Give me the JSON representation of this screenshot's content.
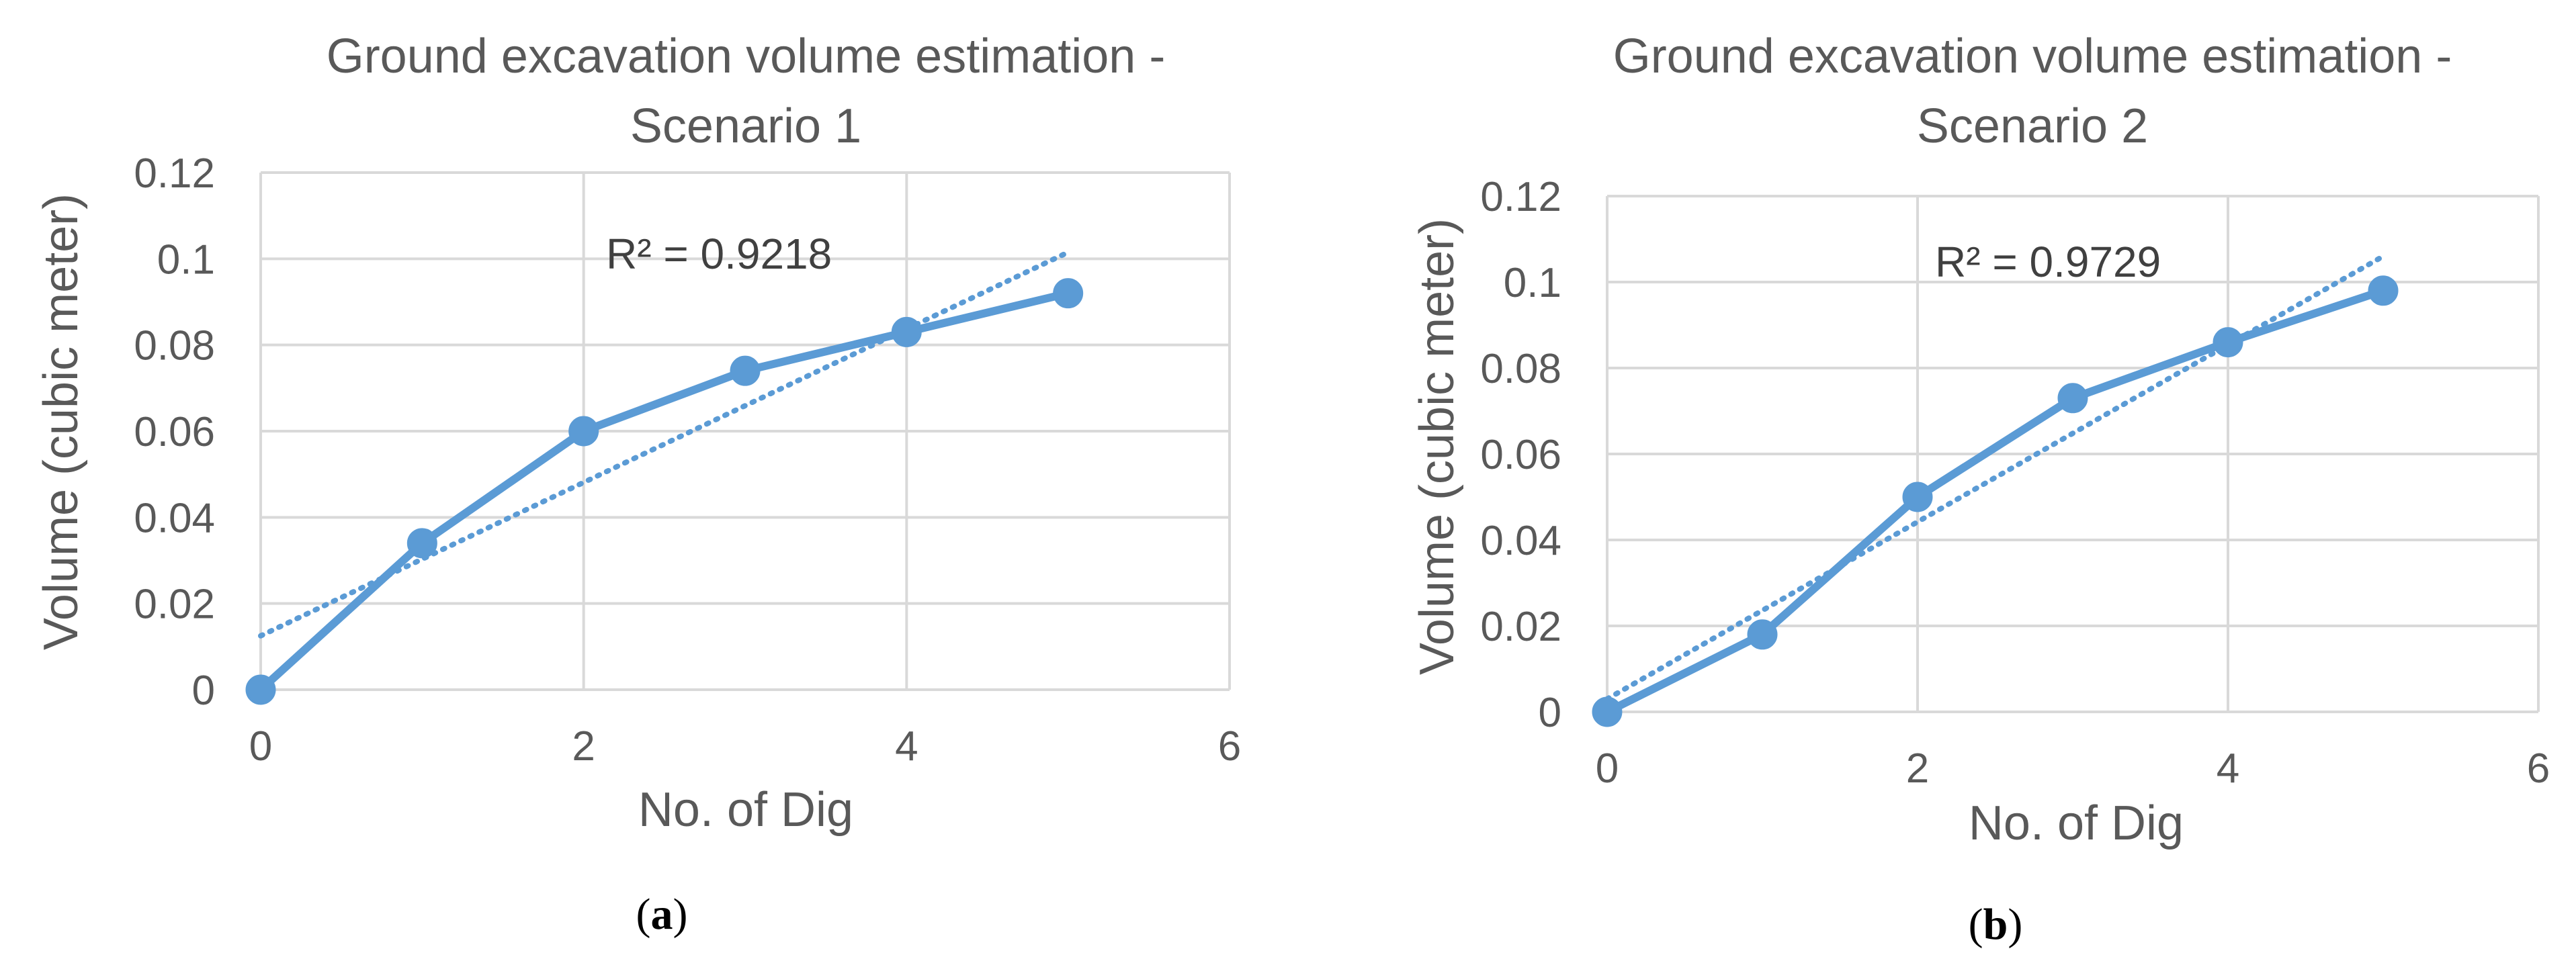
{
  "chart_data": [
    {
      "type": "line",
      "title_lines": [
        "Ground excavation volume estimation  -",
        "Scenario 1"
      ],
      "xlabel": "No. of Dig",
      "ylabel": "Volume (cubic meter)",
      "xlim": [
        0,
        6
      ],
      "ylim": [
        0,
        0.12
      ],
      "x_ticks": [
        0,
        2,
        4,
        6
      ],
      "x_tick_labels": [
        "0",
        "2",
        "4",
        "6"
      ],
      "y_ticks": [
        0,
        0.02,
        0.04,
        0.06,
        0.08,
        0.1,
        0.12
      ],
      "y_tick_labels": [
        "0",
        "0.02",
        "0.04",
        "0.06",
        "0.08",
        "0.1",
        "0.12"
      ],
      "grid": true,
      "series": [
        {
          "name": "Volume",
          "x": [
            0,
            1,
            2,
            3,
            4,
            5
          ],
          "y": [
            0,
            0.034,
            0.06,
            0.074,
            0.083,
            0.092
          ]
        }
      ],
      "trendline": {
        "type": "linear",
        "x": [
          0,
          5
        ],
        "y": [
          0.0125,
          0.1015
        ],
        "r2_label": "R² = 0.9218"
      },
      "caption": {
        "open": "(",
        "letter": "a",
        "close": ")"
      }
    },
    {
      "type": "line",
      "title_lines": [
        "Ground excavation volume estimation  -",
        "Scenario 2"
      ],
      "xlabel": "No. of Dig",
      "ylabel": "Volume (cubic meter)",
      "xlim": [
        0,
        6
      ],
      "ylim": [
        0,
        0.12
      ],
      "x_ticks": [
        0,
        2,
        4,
        6
      ],
      "x_tick_labels": [
        "0",
        "2",
        "4",
        "6"
      ],
      "y_ticks": [
        0,
        0.02,
        0.04,
        0.06,
        0.08,
        0.1,
        0.12
      ],
      "y_tick_labels": [
        "0",
        "0.02",
        "0.04",
        "0.06",
        "0.08",
        "0.1",
        "0.12"
      ],
      "grid": true,
      "series": [
        {
          "name": "Volume",
          "x": [
            0,
            1,
            2,
            3,
            4,
            5
          ],
          "y": [
            0,
            0.018,
            0.05,
            0.073,
            0.086,
            0.098
          ]
        }
      ],
      "trendline": {
        "type": "linear",
        "x": [
          0,
          5
        ],
        "y": [
          0.003,
          0.106
        ],
        "r2_label": "R² = 0.9729"
      },
      "caption": {
        "open": "(",
        "letter": "b",
        "close": ")"
      }
    }
  ],
  "colors": {
    "series": "#5b9bd5",
    "grid": "#d9d9d9",
    "text": "#595959"
  }
}
